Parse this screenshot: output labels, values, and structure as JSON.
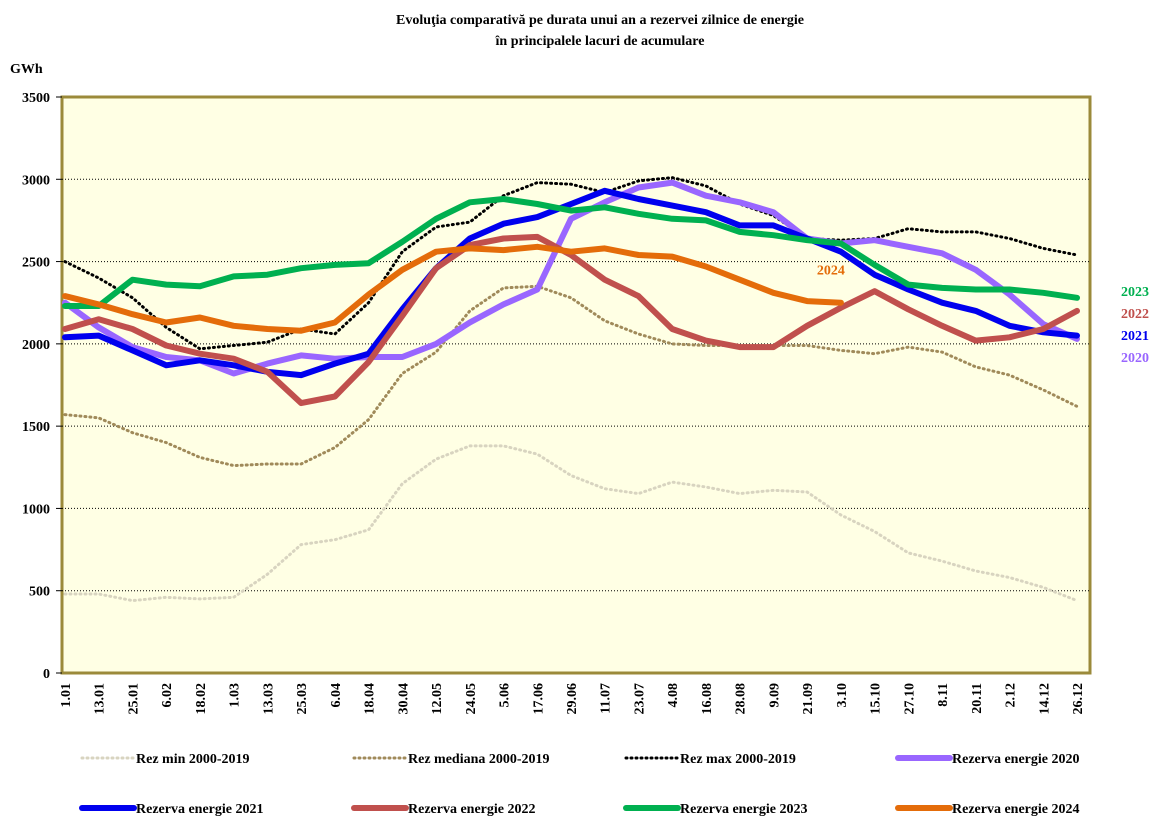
{
  "chart_data": {
    "type": "line",
    "title": "Evoluţia comparativă pe durata unui an a rezervei zilnice de energie",
    "subtitle": "în principalele lacuri de acumulare",
    "y_label": "GWh",
    "categories": [
      "1.01",
      "13.01",
      "25.01",
      "6.02",
      "18.02",
      "1.03",
      "13.03",
      "25.03",
      "6.04",
      "18.04",
      "30.04",
      "12.05",
      "24.05",
      "5.06",
      "17.06",
      "29.06",
      "11.07",
      "23.07",
      "4.08",
      "16.08",
      "28.08",
      "9.09",
      "21.09",
      "3.10",
      "15.10",
      "27.10",
      "8.11",
      "20.11",
      "2.12",
      "14.12",
      "26.12"
    ],
    "ylim": [
      0,
      3500
    ],
    "yticks": [
      0,
      500,
      1000,
      1500,
      2000,
      2500,
      3000,
      3500
    ],
    "grid": true,
    "series": [
      {
        "name": "Rez min 2000-2019",
        "color": "#d8d4c0",
        "dash": "dotted",
        "width": 3,
        "values": [
          480,
          480,
          440,
          460,
          450,
          460,
          600,
          780,
          810,
          870,
          1150,
          1300,
          1380,
          1380,
          1330,
          1200,
          1120,
          1090,
          1160,
          1130,
          1090,
          1110,
          1100,
          960,
          860,
          730,
          680,
          620,
          580,
          520,
          440
        ]
      },
      {
        "name": "Rez mediana 2000-2019",
        "color": "#a08a5a",
        "dash": "dotted",
        "width": 3,
        "values": [
          1570,
          1550,
          1460,
          1400,
          1310,
          1260,
          1270,
          1270,
          1370,
          1540,
          1820,
          1950,
          2200,
          2340,
          2350,
          2280,
          2140,
          2060,
          2000,
          1990,
          1990,
          1990,
          1990,
          1960,
          1940,
          1980,
          1950,
          1860,
          1810,
          1720,
          1620
        ]
      },
      {
        "name": "Rez max 2000-2019",
        "color": "#000000",
        "dash": "dotted",
        "width": 3,
        "values": [
          2500,
          2400,
          2280,
          2100,
          1970,
          1990,
          2010,
          2090,
          2060,
          2250,
          2560,
          2710,
          2740,
          2900,
          2980,
          2970,
          2920,
          2990,
          3010,
          2960,
          2850,
          2780,
          2640,
          2630,
          2640,
          2700,
          2680,
          2680,
          2640,
          2580,
          2540
        ]
      },
      {
        "name": "Rezerva energie 2020",
        "color": "#9966ff",
        "dash": "solid",
        "width": 6,
        "label": "2020",
        "values": [
          2250,
          2100,
          1980,
          1920,
          1900,
          1820,
          1880,
          1930,
          1910,
          1920,
          1920,
          2000,
          2130,
          2240,
          2330,
          2760,
          2860,
          2950,
          2980,
          2900,
          2860,
          2800,
          2640,
          2610,
          2630,
          2590,
          2550,
          2450,
          2300,
          2120,
          2030
        ]
      },
      {
        "name": "Rezerva energie 2021",
        "color": "#0000ee",
        "dash": "solid",
        "width": 6,
        "label": "2021",
        "values": [
          2040,
          2050,
          1960,
          1870,
          1900,
          1870,
          1830,
          1810,
          1880,
          1940,
          2210,
          2460,
          2640,
          2730,
          2770,
          2850,
          2930,
          2880,
          2840,
          2800,
          2720,
          2720,
          2640,
          2560,
          2420,
          2330,
          2250,
          2200,
          2110,
          2070,
          2050
        ]
      },
      {
        "name": "Rezerva energie 2022",
        "color": "#c0504d",
        "dash": "solid",
        "width": 6,
        "label": "2022",
        "values": [
          2090,
          2150,
          2090,
          1990,
          1940,
          1910,
          1830,
          1640,
          1680,
          1890,
          2170,
          2460,
          2600,
          2640,
          2650,
          2540,
          2390,
          2290,
          2090,
          2020,
          1980,
          1980,
          2110,
          2220,
          2320,
          2210,
          2110,
          2020,
          2040,
          2090,
          2200
        ]
      },
      {
        "name": "Rezerva energie 2023",
        "color": "#00b050",
        "dash": "solid",
        "width": 6,
        "label": "2023",
        "values": [
          2230,
          2230,
          2390,
          2360,
          2350,
          2410,
          2420,
          2460,
          2480,
          2490,
          2620,
          2760,
          2860,
          2880,
          2850,
          2810,
          2830,
          2790,
          2760,
          2750,
          2680,
          2660,
          2630,
          2610,
          2480,
          2360,
          2340,
          2330,
          2330,
          2310,
          2280
        ]
      },
      {
        "name": "Rezerva energie 2024",
        "color": "#e46c0a",
        "dash": "solid",
        "width": 6,
        "label": "2024",
        "values": [
          2290,
          2240,
          2180,
          2130,
          2160,
          2110,
          2090,
          2080,
          2130,
          2300,
          2450,
          2560,
          2580,
          2570,
          2590,
          2560,
          2580,
          2540,
          2530,
          2470,
          2390,
          2310,
          2260,
          2250,
          null,
          null,
          null,
          null,
          null,
          null,
          null
        ]
      }
    ]
  }
}
